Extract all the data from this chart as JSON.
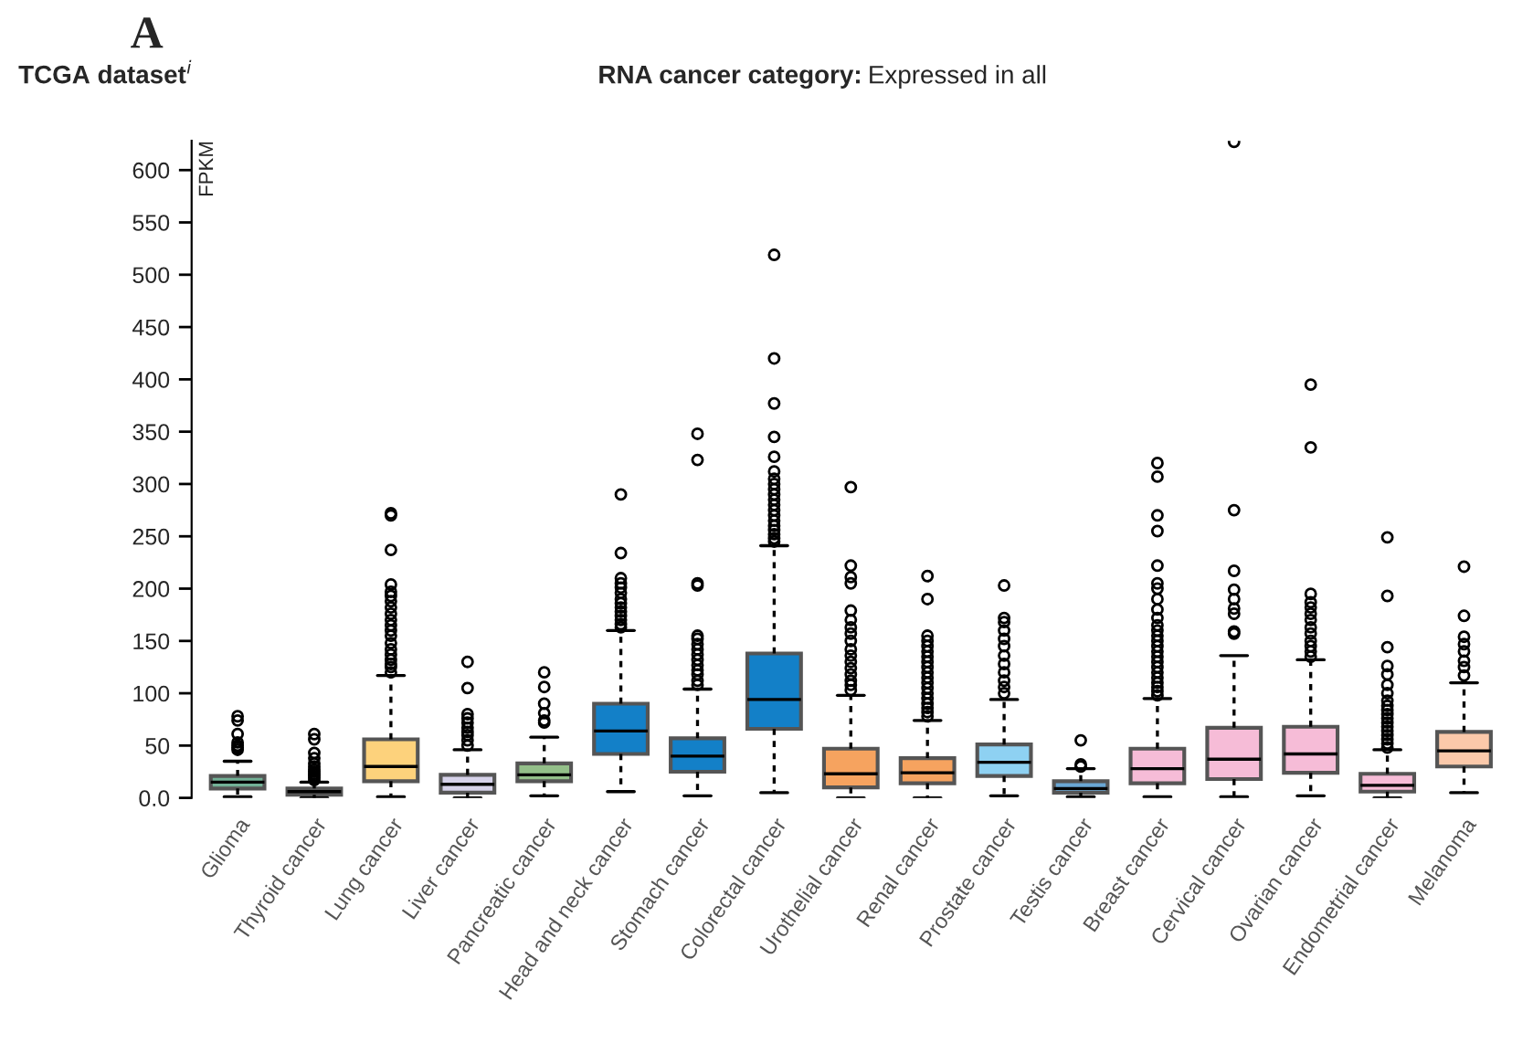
{
  "chart_data": {
    "type": "box",
    "title": "TCGA dataset$^{i}$",
    "subtitle": "RNA cancer category: Expressed in all",
    "annotations": [
      "A"
    ],
    "ylabel": "FPKM",
    "categories": [
      "Glioma",
      "Thyroid cancer",
      "Lung cancer",
      "Liver cancer",
      "Pancreatic cancer",
      "Head and neck cancer",
      "Stomach cancer",
      "Colorectal cancer",
      "Urothelial cancer",
      "Renal cancer",
      "Prostate cancer",
      "Testis cancer",
      "Breast cancer",
      "Cervical cancer",
      "Ovarian cancer",
      "Endometrial cancer",
      "Melanoma"
    ],
    "colors": [
      "#72b096",
      "#8a86bf",
      "#fdd27c",
      "#d6d2ea",
      "#93bf89",
      "#1380c8",
      "#1380c8",
      "#1380c8",
      "#f6a35f",
      "#f6a35f",
      "#8ed1f2",
      "#6aa7d4",
      "#f6bcd7",
      "#f6bcd7",
      "#f6bcd7",
      "#f6bcd7",
      "#fbc9aa"
    ],
    "boxes": [
      {
        "low": 1,
        "q1": 9,
        "median": 15,
        "q3": 21,
        "high": 35,
        "outliers": [
          46,
          48,
          50,
          53,
          61,
          74,
          78
        ]
      },
      {
        "low": 0,
        "q1": 3,
        "median": 6,
        "q3": 9,
        "high": 15,
        "outliers": [
          17,
          19,
          21,
          23,
          25,
          27,
          30,
          33,
          38,
          43,
          56,
          61
        ]
      },
      {
        "low": 1,
        "q1": 16,
        "median": 30,
        "q3": 56,
        "high": 117,
        "outliers": [
          120,
          125,
          128,
          132,
          137,
          142,
          148,
          155,
          160,
          165,
          170,
          176,
          182,
          188,
          193,
          197,
          204,
          237,
          270,
          272
        ]
      },
      {
        "low": 0,
        "q1": 5,
        "median": 13,
        "q3": 22,
        "high": 46,
        "outliers": [
          50,
          55,
          60,
          63,
          67,
          72,
          76,
          80,
          105,
          130
        ]
      },
      {
        "low": 2,
        "q1": 16,
        "median": 22,
        "q3": 33,
        "high": 58,
        "outliers": [
          72,
          74,
          81,
          90,
          106,
          120
        ]
      },
      {
        "low": 6,
        "q1": 42,
        "median": 64,
        "q3": 90,
        "high": 160,
        "outliers": [
          163,
          166,
          170,
          174,
          178,
          182,
          186,
          190,
          196,
          201,
          205,
          210,
          234,
          290
        ]
      },
      {
        "low": 2,
        "q1": 25,
        "median": 40,
        "q3": 57,
        "high": 104,
        "outliers": [
          108,
          112,
          118,
          122,
          127,
          132,
          137,
          142,
          147,
          152,
          155,
          203,
          205,
          323,
          348
        ]
      },
      {
        "low": 5,
        "q1": 66,
        "median": 94,
        "q3": 138,
        "high": 241,
        "outliers": [
          245,
          248,
          252,
          256,
          260,
          265,
          270,
          275,
          280,
          285,
          290,
          295,
          300,
          305,
          312,
          326,
          345,
          377,
          420,
          519
        ]
      },
      {
        "low": 0,
        "q1": 10,
        "median": 23,
        "q3": 47,
        "high": 98,
        "outliers": [
          103,
          108,
          112,
          118,
          124,
          130,
          136,
          142,
          150,
          157,
          163,
          170,
          179,
          205,
          211,
          222,
          297
        ]
      },
      {
        "low": 0,
        "q1": 14,
        "median": 24,
        "q3": 38,
        "high": 74,
        "outliers": [
          78,
          82,
          86,
          90,
          95,
          100,
          105,
          110,
          115,
          120,
          125,
          130,
          135,
          140,
          145,
          150,
          155,
          190,
          212
        ]
      },
      {
        "low": 2,
        "q1": 21,
        "median": 34,
        "q3": 51,
        "high": 94,
        "outliers": [
          100,
          106,
          112,
          120,
          128,
          136,
          145,
          152,
          160,
          168,
          172,
          203
        ]
      },
      {
        "low": 1,
        "q1": 5,
        "median": 9,
        "q3": 16,
        "high": 28,
        "outliers": [
          30,
          32,
          55
        ]
      },
      {
        "low": 1,
        "q1": 14,
        "median": 28,
        "q3": 47,
        "high": 95,
        "outliers": [
          98,
          102,
          106,
          110,
          115,
          120,
          125,
          130,
          135,
          140,
          145,
          150,
          155,
          160,
          165,
          172,
          180,
          190,
          200,
          205,
          222,
          255,
          270,
          307,
          320
        ]
      },
      {
        "low": 1,
        "q1": 18,
        "median": 37,
        "q3": 67,
        "high": 136,
        "outliers": [
          157,
          159,
          176,
          181,
          190,
          199,
          217,
          275,
          627
        ]
      },
      {
        "low": 2,
        "q1": 24,
        "median": 42,
        "q3": 68,
        "high": 132,
        "outliers": [
          135,
          140,
          145,
          150,
          157,
          163,
          170,
          176,
          182,
          187,
          195,
          335,
          395
        ]
      },
      {
        "low": 0,
        "q1": 6,
        "median": 12,
        "q3": 23,
        "high": 46,
        "outliers": [
          48,
          52,
          56,
          60,
          64,
          68,
          72,
          76,
          80,
          84,
          88,
          93,
          100,
          108,
          118,
          126,
          144,
          193,
          249
        ]
      },
      {
        "low": 5,
        "q1": 30,
        "median": 45,
        "q3": 63,
        "high": 110,
        "outliers": [
          117,
          125,
          131,
          140,
          147,
          154,
          174,
          221
        ]
      }
    ],
    "ylim": [
      0,
      628
    ],
    "yticks": [
      {
        "value": 0,
        "label": "0.0"
      },
      50,
      100,
      150,
      200,
      250,
      300,
      350,
      400,
      450,
      500,
      550,
      600
    ],
    "grid": false,
    "legend": false
  }
}
